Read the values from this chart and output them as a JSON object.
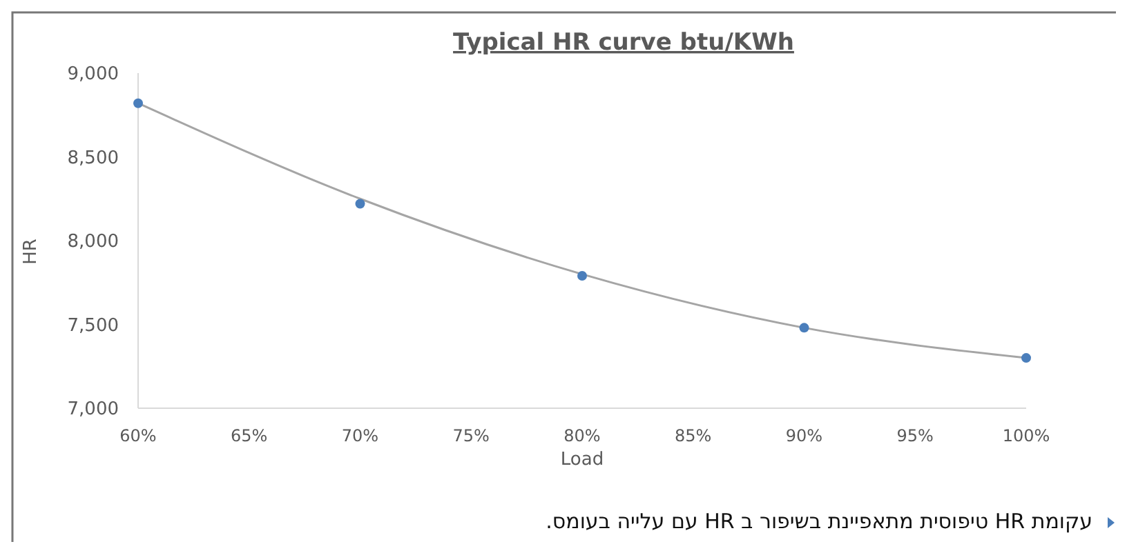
{
  "chart_data": {
    "type": "scatter",
    "title": "Typical HR curve btu/KWh",
    "xlabel": "Load",
    "ylabel": "HR",
    "x": [
      60,
      70,
      80,
      90,
      100
    ],
    "series": [
      {
        "type": "line",
        "color": "#a5a5a5",
        "marker": "none",
        "x": [
          60,
          70,
          80,
          90,
          100
        ],
        "values": [
          8820,
          8250,
          7800,
          7480,
          7300
        ]
      },
      {
        "color": "#4a7ebb",
        "marker": "circle",
        "values": [
          8820,
          8220,
          7790,
          7480,
          7300
        ]
      }
    ],
    "xlim": [
      60,
      100
    ],
    "xticks": [
      {
        "value": 60,
        "label": "60%"
      },
      {
        "value": 65,
        "label": "65%"
      },
      {
        "value": 70,
        "label": "70%"
      },
      {
        "value": 75,
        "label": "75%"
      },
      {
        "value": 80,
        "label": "80%"
      },
      {
        "value": 85,
        "label": "85%"
      },
      {
        "value": 90,
        "label": "90%"
      },
      {
        "value": 95,
        "label": "95%"
      },
      {
        "value": 100,
        "label": "100%"
      }
    ],
    "ylim": [
      7000,
      9000
    ],
    "yticks": [
      {
        "value": 7000,
        "label": "7,000"
      },
      {
        "value": 7500,
        "label": "7,500"
      },
      {
        "value": 8000,
        "label": "8,000"
      },
      {
        "value": 8500,
        "label": "8,500"
      },
      {
        "value": 9000,
        "label": "9,000"
      }
    ],
    "grid": false,
    "annotations": [
      "עקומת HR טיפוסית מתאפיינת בשיפור ב HR עם עלייה בעומס."
    ]
  }
}
